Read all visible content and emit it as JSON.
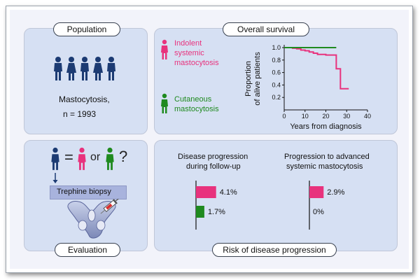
{
  "population": {
    "title": "Population",
    "disease": "Mastocytosis,",
    "count": "n = 1993",
    "icons": [
      "person-male-icon",
      "person-female-icon",
      "person-male-icon",
      "person-female-icon",
      "person-male-icon"
    ]
  },
  "survival": {
    "title": "Overall survival",
    "legend_indolent": [
      "Indolent",
      "systemic",
      "mastocytosis"
    ],
    "legend_cutaneous": [
      "Cutaneous",
      "mastocytosis"
    ],
    "colors": {
      "indolent": "#e8327d",
      "cutaneous": "#1f8a1f"
    }
  },
  "evaluation": {
    "title": "Evaluation",
    "equals": "=",
    "or": "or",
    "question": "?",
    "biopsy_label": "Trephine biopsy",
    "icons": [
      "person-navy-icon",
      "person-pink-icon",
      "person-green-icon",
      "pelvis-syringe-icon"
    ]
  },
  "risk": {
    "title": "Risk of disease progression",
    "left_title": [
      "Disease progression",
      "during follow-up"
    ],
    "right_title": [
      "Progression to advanced",
      "systemic mastocytosis"
    ]
  },
  "chart_data": [
    {
      "type": "line",
      "title": "",
      "xlabel": "Years from diagnosis",
      "ylabel": "Proportion of alive patients",
      "xlim": [
        0,
        40
      ],
      "ylim": [
        0,
        1.0
      ],
      "xticks": [
        0,
        10,
        20,
        30,
        40
      ],
      "yticks": [
        0.2,
        0.4,
        0.6,
        0.8,
        1.0
      ],
      "xtick_labels": [
        "0",
        "10",
        "20",
        "30",
        "40"
      ],
      "ytick_labels": [
        "0.2",
        "0.4",
        "0.6",
        "0.8",
        "1.0"
      ],
      "series": [
        {
          "color": "#e8327d",
          "step": true,
          "x": [
            0,
            2,
            4,
            6,
            8,
            10,
            12,
            14,
            16,
            18,
            20,
            25,
            25,
            27,
            27,
            29,
            31
          ],
          "y": [
            1.0,
            1.0,
            0.99,
            0.98,
            0.96,
            0.95,
            0.93,
            0.91,
            0.89,
            0.89,
            0.88,
            0.88,
            0.66,
            0.66,
            0.34,
            0.34,
            0.34
          ]
        },
        {
          "color": "#1f8a1f",
          "step": true,
          "x": [
            0,
            25
          ],
          "y": [
            1.0,
            1.0
          ]
        }
      ]
    },
    {
      "type": "bar",
      "orientation": "horizontal",
      "categories": [
        "Indolent systemic mastocytosis",
        "Cutaneous mastocytosis"
      ],
      "values": [
        4.1,
        1.7
      ],
      "value_labels": [
        "4.1%",
        "1.7%"
      ],
      "colors": [
        "#e8327d",
        "#1f8a1f"
      ]
    },
    {
      "type": "bar",
      "orientation": "horizontal",
      "categories": [
        "Indolent systemic mastocytosis",
        "Cutaneous mastocytosis"
      ],
      "values": [
        2.9,
        0
      ],
      "value_labels": [
        "2.9%",
        "0%"
      ],
      "colors": [
        "#e8327d",
        "#1f8a1f"
      ]
    }
  ]
}
